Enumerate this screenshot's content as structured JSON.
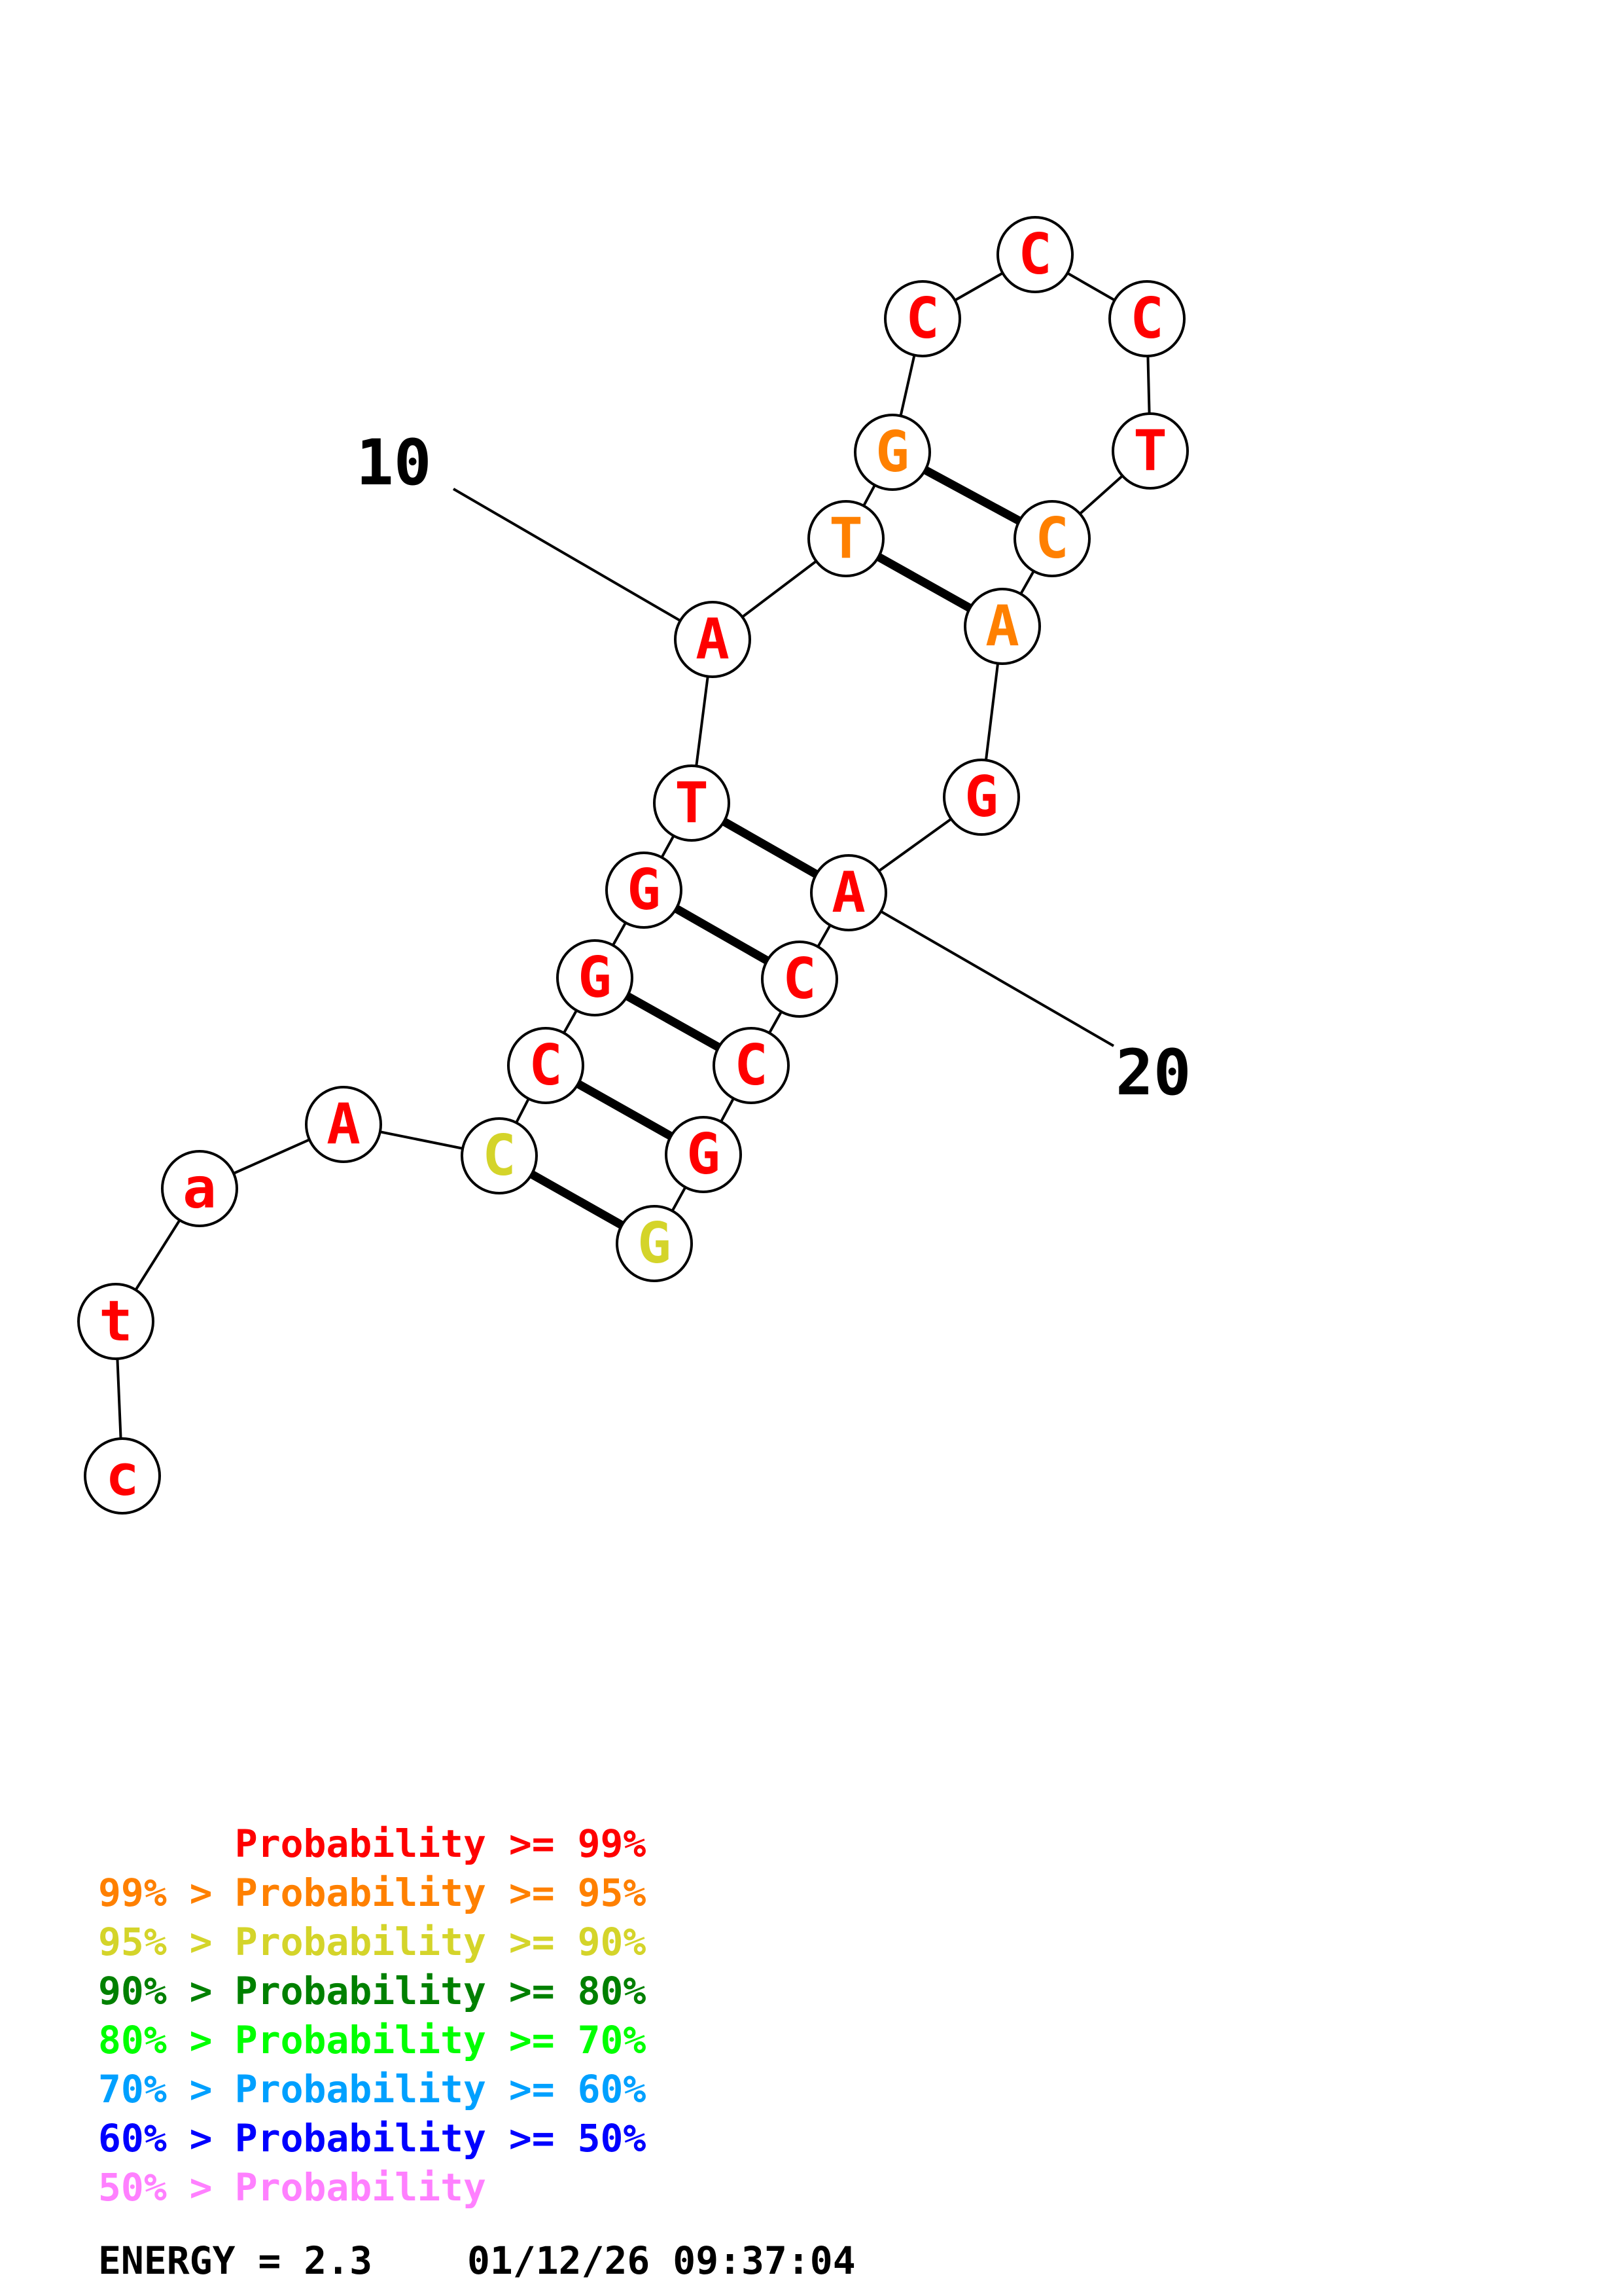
{
  "structure": {
    "bases": [
      {
        "index": 1,
        "letter": "c",
        "prob": "p99"
      },
      {
        "index": 2,
        "letter": "t",
        "prob": "p99"
      },
      {
        "index": 3,
        "letter": "a",
        "prob": "p99"
      },
      {
        "index": 4,
        "letter": "A",
        "prob": "p99"
      },
      {
        "index": 5,
        "letter": "C",
        "prob": "p90"
      },
      {
        "index": 6,
        "letter": "C",
        "prob": "p99"
      },
      {
        "index": 7,
        "letter": "G",
        "prob": "p99"
      },
      {
        "index": 8,
        "letter": "G",
        "prob": "p99"
      },
      {
        "index": 9,
        "letter": "T",
        "prob": "p99"
      },
      {
        "index": 10,
        "letter": "A",
        "prob": "p99"
      },
      {
        "index": 11,
        "letter": "T",
        "prob": "p95"
      },
      {
        "index": 12,
        "letter": "G",
        "prob": "p95"
      },
      {
        "index": 13,
        "letter": "C",
        "prob": "p99"
      },
      {
        "index": 14,
        "letter": "C",
        "prob": "p99"
      },
      {
        "index": 15,
        "letter": "C",
        "prob": "p99"
      },
      {
        "index": 16,
        "letter": "T",
        "prob": "p99"
      },
      {
        "index": 17,
        "letter": "C",
        "prob": "p95"
      },
      {
        "index": 18,
        "letter": "A",
        "prob": "p95"
      },
      {
        "index": 19,
        "letter": "G",
        "prob": "p99"
      },
      {
        "index": 20,
        "letter": "A",
        "prob": "p99"
      },
      {
        "index": 21,
        "letter": "C",
        "prob": "p99"
      },
      {
        "index": 22,
        "letter": "C",
        "prob": "p99"
      },
      {
        "index": 23,
        "letter": "G",
        "prob": "p99"
      },
      {
        "index": 24,
        "letter": "G",
        "prob": "p90"
      }
    ],
    "pairs": [
      [
        5,
        24
      ],
      [
        6,
        23
      ],
      [
        7,
        22
      ],
      [
        8,
        21
      ],
      [
        9,
        20
      ],
      [
        11,
        18
      ],
      [
        12,
        17
      ]
    ],
    "number_labels": [
      {
        "base": 10,
        "text": "10"
      },
      {
        "base": 20,
        "text": "20"
      }
    ]
  },
  "prob_colors": {
    "p99": "#ff0000",
    "p95": "#ff8000",
    "p90": "#d4d42a",
    "p80": "#008000",
    "p70": "#00ff00",
    "p60": "#00a0ff",
    "p50": "#0000ff",
    "plow": "#ff80ff"
  },
  "legend": [
    {
      "range": "",
      "label": "Probability >= 99%",
      "prob": "p99"
    },
    {
      "range": "99% > ",
      "label": "Probability >= 95%",
      "prob": "p95"
    },
    {
      "range": "95% > ",
      "label": "Probability >= 90%",
      "prob": "p90"
    },
    {
      "range": "90% > ",
      "label": "Probability >= 80%",
      "prob": "p80"
    },
    {
      "range": "80% > ",
      "label": "Probability >= 70%",
      "prob": "p70"
    },
    {
      "range": "70% > ",
      "label": "Probability >= 60%",
      "prob": "p60"
    },
    {
      "range": "60% > ",
      "label": "Probability >= 50%",
      "prob": "p50"
    },
    {
      "range": "50% > ",
      "label": "Probability",
      "prob": "plow"
    }
  ],
  "footer": {
    "energy": "ENERGY = 2.3",
    "timestamp": "01/12/26 09:37:04"
  }
}
